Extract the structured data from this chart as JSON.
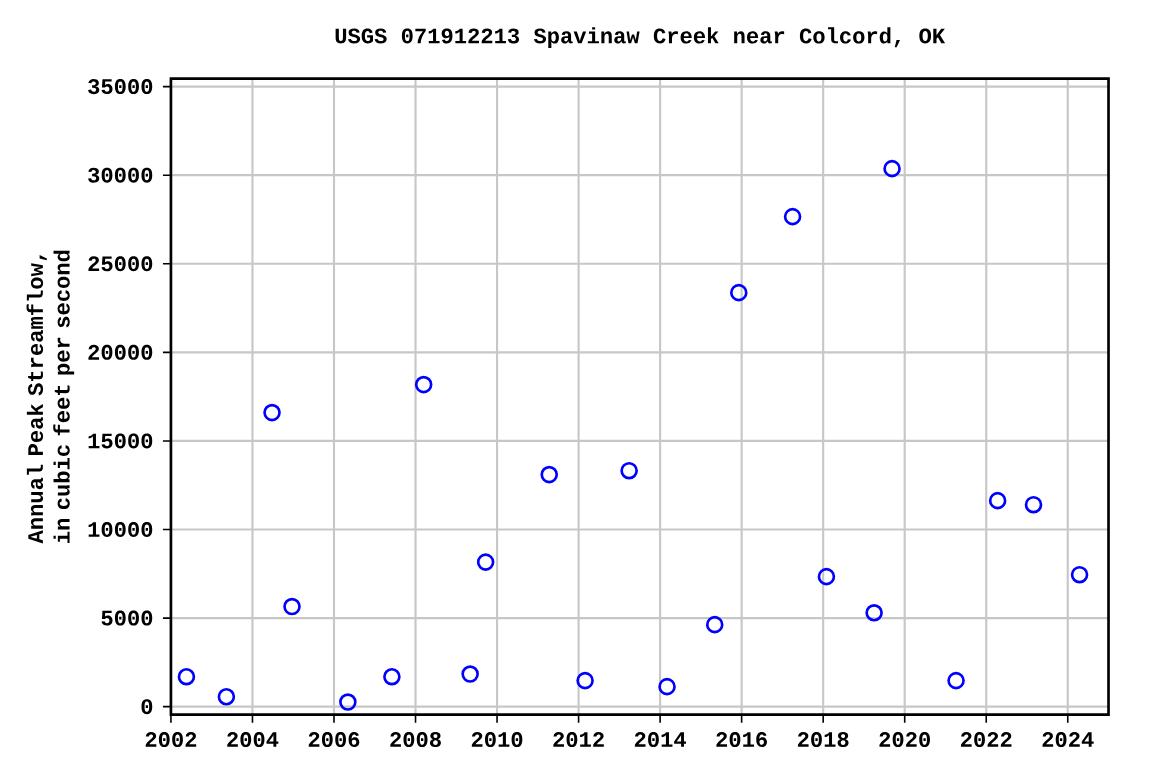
{
  "chart_data": {
    "type": "scatter",
    "title": "USGS 071912213 Spavinaw Creek near Colcord, OK",
    "ylabel": "Annual Peak Streamflow, in cubic feet per second",
    "x": [
      2002.38,
      2003.36,
      2004.48,
      2004.97,
      2006.34,
      2007.42,
      2008.2,
      2009.34,
      2009.72,
      2011.28,
      2012.16,
      2013.24,
      2014.17,
      2015.34,
      2015.93,
      2017.25,
      2018.08,
      2019.25,
      2019.69,
      2021.26,
      2022.28,
      2023.16,
      2024.29
    ],
    "values": [
      1690,
      560,
      16600,
      5650,
      260,
      1690,
      18180,
      1840,
      8160,
      13100,
      1470,
      13320,
      1130,
      4630,
      23370,
      27660,
      7340,
      5300,
      30370,
      1470,
      11630,
      11400,
      7450
    ],
    "color": "#0000ff",
    "marker": "circle",
    "grid": true,
    "xlim": [
      2002,
      2025
    ],
    "xticks": [
      2002,
      2004,
      2006,
      2008,
      2010,
      2012,
      2014,
      2016,
      2018,
      2020,
      2022,
      2024
    ],
    "ylim": [
      -450,
      35450
    ],
    "yticks": [
      0,
      5000,
      10000,
      15000,
      20000,
      25000,
      30000,
      35000
    ]
  }
}
